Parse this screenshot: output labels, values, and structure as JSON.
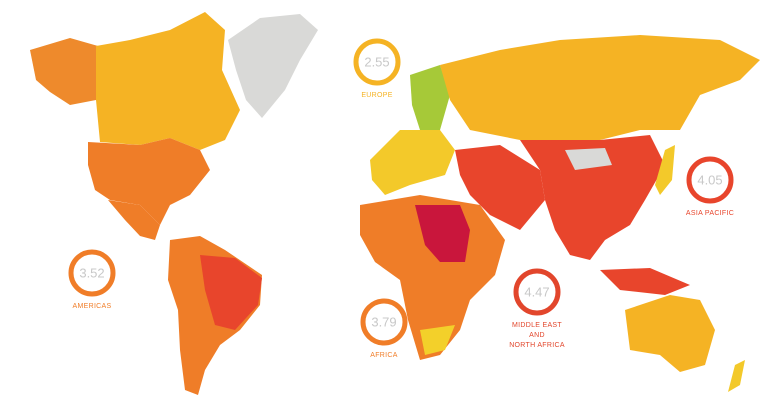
{
  "regions": [
    {
      "label_lines": [
        "EUROPE"
      ],
      "value": 2.55,
      "color": "#f5b324"
    },
    {
      "label_lines": [
        "ASIA PACIFIC"
      ],
      "value": 4.05,
      "color": "#e8452c"
    },
    {
      "label_lines": [
        "AMERICAS"
      ],
      "value": 3.52,
      "color": "#f07d28"
    },
    {
      "label_lines": [
        "MIDDLE EAST",
        "AND",
        "NORTH AFRICA"
      ],
      "value": 4.47,
      "color": "#e2462c"
    },
    {
      "label_lines": [
        "AFRICA"
      ],
      "value": 3.79,
      "color": "#f07d28"
    }
  ]
}
